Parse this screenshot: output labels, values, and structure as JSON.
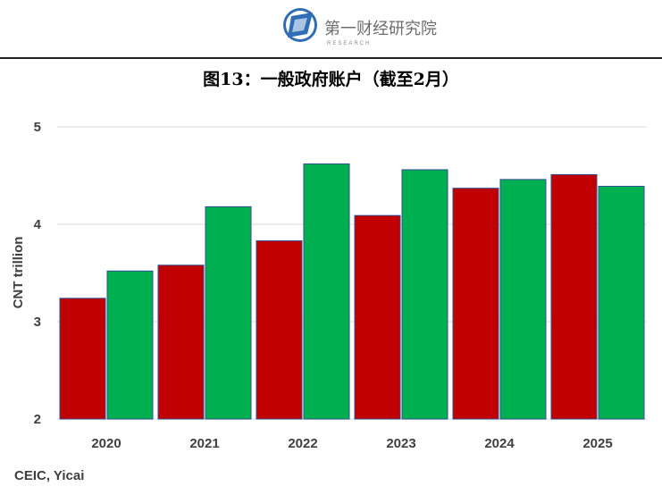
{
  "header": {
    "logo_text": "第一财经研究院",
    "logo_sub": "RESEARCH"
  },
  "title": "图13：一般政府账户（截至2月）",
  "source": "CEIC, Yicai",
  "colors": {
    "series1": "#c00000",
    "series2": "#00b050",
    "outline": "#2f4f8f"
  },
  "chart_data": {
    "type": "bar",
    "categories": [
      "2020",
      "2021",
      "2022",
      "2023",
      "2024",
      "2025"
    ],
    "series": [
      {
        "values": [
          3.24,
          3.58,
          3.83,
          4.09,
          4.37,
          4.51
        ]
      },
      {
        "values": [
          3.52,
          4.18,
          4.62,
          4.56,
          4.46,
          4.39
        ]
      }
    ],
    "ylabel": "CNT trillion",
    "ylim": [
      2,
      5
    ],
    "yticks": [
      2,
      3,
      4,
      5
    ],
    "grid": true,
    "legend": "none"
  }
}
